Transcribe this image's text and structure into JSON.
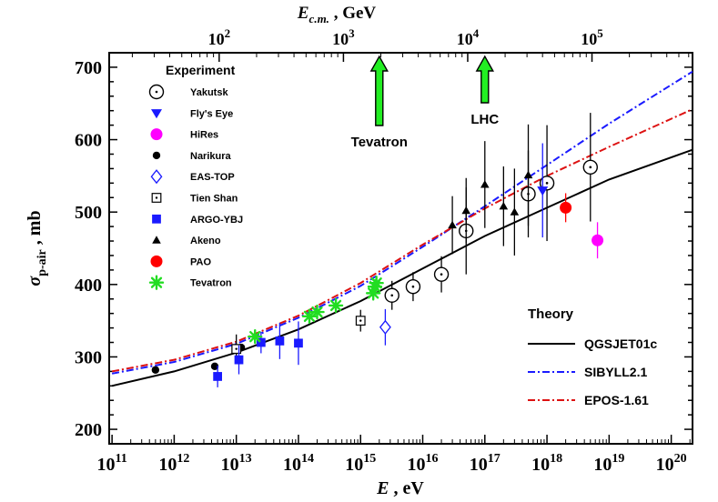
{
  "chart_data": {
    "type": "scatter",
    "x_scale": "log",
    "xlim_eV": [
      90000000000.0,
      2.2e+20
    ],
    "ylim": [
      180,
      720
    ],
    "xlabel": "E ,   eV",
    "ylabel": "σp-air ,   mb",
    "top_axis_label": "Ec.m. ,   GeV",
    "y_ticks": [
      200,
      300,
      400,
      500,
      600,
      700
    ],
    "x_ticks": [
      {
        "exp": "11",
        "x": 100000000000.0
      },
      {
        "exp": "12",
        "x": 1000000000000.0
      },
      {
        "exp": "13",
        "x": 10000000000000.0
      },
      {
        "exp": "14",
        "x": 100000000000000.0
      },
      {
        "exp": "15",
        "x": 1000000000000000.0
      },
      {
        "exp": "16",
        "x": 1e+16
      },
      {
        "exp": "17",
        "x": 1e+17
      },
      {
        "exp": "18",
        "x": 1e+18
      },
      {
        "exp": "19",
        "x": 1e+19
      },
      {
        "exp": "20",
        "x": 1e+20
      }
    ],
    "top_ticks": [
      {
        "exp": "2",
        "x_eV": 5300000000000.0
      },
      {
        "exp": "3",
        "x_eV": 530000000000000.0
      },
      {
        "exp": "4",
        "x_eV": 5.3e+16
      },
      {
        "exp": "5",
        "x_eV": 5.3e+18
      }
    ],
    "legend_title": "Experiment",
    "theory_title": "Theory",
    "arrows": [
      {
        "label": "Tevatron",
        "x_eV": 2000000000000000.0
      },
      {
        "label": "LHC",
        "x_eV": 1e+17
      }
    ],
    "series": [
      {
        "name": "Yakutsk",
        "marker": "circle-open-dot",
        "color": "#000000",
        "points": [
          [
            3200000000000000.0,
            385,
            20
          ],
          [
            7000000000000000.0,
            397,
            20
          ],
          [
            2e+16,
            414,
            25
          ],
          [
            5e+16,
            474,
            60
          ],
          [
            5e+17,
            525,
            60
          ],
          [
            1e+18,
            540,
            80
          ],
          [
            5e+18,
            562,
            75
          ]
        ]
      },
      {
        "name": "Fly's Eye",
        "marker": "triangle-down",
        "color": "#1a1aff",
        "points": [
          [
            8.5e+17,
            530,
            65
          ]
        ]
      },
      {
        "name": "HiRes",
        "marker": "circle",
        "color": "#ff00ff",
        "points": [
          [
            6.5e+18,
            461,
            25
          ]
        ]
      },
      {
        "name": "Narikura",
        "marker": "dot",
        "color": "#000000",
        "points": [
          [
            500000000000.0,
            282,
            0
          ],
          [
            4500000000000.0,
            287,
            0
          ],
          [
            12000000000000.0,
            313,
            0
          ]
        ]
      },
      {
        "name": "EAS-TOP",
        "marker": "diamond-open",
        "color": "#1a1aff",
        "points": [
          [
            2500000000000000.0,
            341,
            25
          ]
        ]
      },
      {
        "name": "Tien Shan",
        "marker": "square-open-dot",
        "color": "#000000",
        "points": [
          [
            10000000000000.0,
            311,
            20
          ],
          [
            1000000000000000.0,
            350,
            15
          ]
        ]
      },
      {
        "name": "ARGO-YBJ",
        "marker": "square",
        "color": "#1a1aff",
        "points": [
          [
            5000000000000.0,
            273,
            15
          ],
          [
            11000000000000.0,
            296,
            20
          ],
          [
            25000000000000.0,
            320,
            15
          ],
          [
            50000000000000.0,
            322,
            25
          ],
          [
            100000000000000.0,
            319,
            30
          ]
        ]
      },
      {
        "name": "Akeno",
        "marker": "triangle-up",
        "color": "#000000",
        "points": [
          [
            3e+16,
            482,
            40
          ],
          [
            5e+16,
            502,
            45
          ],
          [
            1e+17,
            538,
            60
          ],
          [
            2e+17,
            508,
            55
          ],
          [
            3e+17,
            500,
            60
          ],
          [
            5e+17,
            551,
            70
          ]
        ]
      },
      {
        "name": "PAO",
        "marker": "circle",
        "color": "#ff0000",
        "points": [
          [
            2e+18,
            506,
            20
          ]
        ]
      },
      {
        "name": "Tevatron",
        "marker": "asterisk",
        "color": "#22dd22",
        "points": [
          [
            20000000000000.0,
            328,
            0
          ],
          [
            150000000000000.0,
            356,
            0
          ],
          [
            200000000000000.0,
            362,
            0
          ],
          [
            400000000000000.0,
            371,
            0
          ],
          [
            1600000000000000.0,
            388,
            0
          ],
          [
            1700000000000000.0,
            397,
            0
          ],
          [
            1800000000000000.0,
            402,
            0
          ]
        ]
      }
    ],
    "curves": [
      {
        "name": "QGSJET01c",
        "color": "#000000",
        "dash": "none",
        "points": [
          [
            100000000000.0,
            260
          ],
          [
            1000000000000.0,
            280
          ],
          [
            10000000000000.0,
            306
          ],
          [
            100000000000000.0,
            338
          ],
          [
            1000000000000000.0,
            377
          ],
          [
            1e+16,
            422
          ],
          [
            1e+17,
            467
          ],
          [
            1e+18,
            506
          ],
          [
            1e+19,
            545
          ],
          [
            2.2e+20,
            586
          ]
        ]
      },
      {
        "name": "SIBYLL2.1",
        "color": "#1a1aff",
        "dash": "8 3 2 3",
        "points": [
          [
            100000000000.0,
            277
          ],
          [
            1000000000000.0,
            293
          ],
          [
            10000000000000.0,
            318
          ],
          [
            100000000000000.0,
            354
          ],
          [
            1000000000000000.0,
            398
          ],
          [
            1e+16,
            452
          ],
          [
            1e+17,
            508
          ],
          [
            1e+18,
            565
          ],
          [
            1e+19,
            622
          ],
          [
            2.2e+20,
            694
          ]
        ]
      },
      {
        "name": "EPOS-1.61",
        "color": "#dd1111",
        "dash": "8 3 2 3",
        "points": [
          [
            100000000000.0,
            280
          ],
          [
            1000000000000.0,
            296
          ],
          [
            10000000000000.0,
            321
          ],
          [
            100000000000000.0,
            357
          ],
          [
            1000000000000000.0,
            402
          ],
          [
            1e+16,
            455
          ],
          [
            1e+17,
            505
          ],
          [
            1e+18,
            550
          ],
          [
            1e+19,
            590
          ],
          [
            2.2e+20,
            642
          ]
        ]
      }
    ]
  }
}
